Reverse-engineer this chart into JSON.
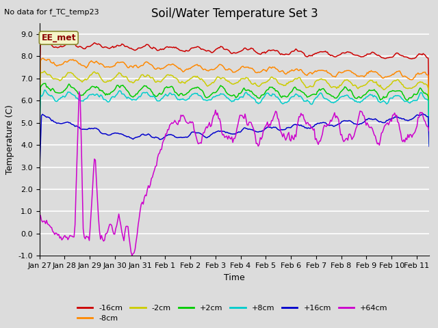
{
  "title": "Soil/Water Temperature Set 3",
  "xlabel": "Time",
  "ylabel": "Temperature (C)",
  "no_data_text": "No data for f_TC_temp23",
  "annotation_text": "EE_met",
  "ylim": [
    -1.0,
    9.5
  ],
  "xlim": [
    0,
    15.5
  ],
  "bg_color": "#dcdcdc",
  "plot_bg_color": "#dcdcdc",
  "grid_color": "white",
  "xtick_labels": [
    "Jan 27",
    "Jan 28",
    "Jan 29",
    "Jan 30",
    "Jan 31",
    "Feb 1",
    "Feb 2",
    "Feb 3",
    "Feb 4",
    "Feb 5",
    "Feb 6",
    "Feb 7",
    "Feb 8",
    "Feb 9",
    "Feb 10",
    "Feb 11"
  ],
  "ytick_labels": [
    "-1.0",
    "0.0",
    "1.0",
    "2.0",
    "3.0",
    "4.0",
    "5.0",
    "6.0",
    "7.0",
    "8.0",
    "9.0"
  ],
  "series": {
    "-16cm": {
      "color": "#cc0000",
      "label": "-16cm"
    },
    "-8cm": {
      "color": "#ff8800",
      "label": "-8cm"
    },
    "-2cm": {
      "color": "#cccc00",
      "label": "-2cm"
    },
    "+2cm": {
      "color": "#00cc00",
      "label": "+2cm"
    },
    "+8cm": {
      "color": "#00cccc",
      "label": "+8cm"
    },
    "+16cm": {
      "color": "#0000cc",
      "label": "+16cm"
    },
    "+64cm": {
      "color": "#cc00cc",
      "label": "+64cm"
    }
  },
  "title_fontsize": 12,
  "axis_label_fontsize": 9,
  "tick_fontsize": 8,
  "legend_fontsize": 8,
  "no_data_fontsize": 8,
  "annotation_fontsize": 9
}
